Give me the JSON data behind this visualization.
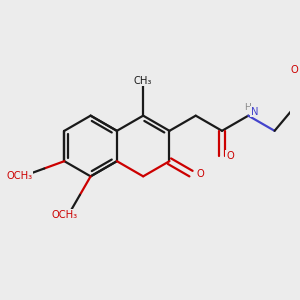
{
  "bg_color": "#ececec",
  "bond_color": "#1a1a1a",
  "oxygen_color": "#cc0000",
  "nitrogen_color": "#4444cc",
  "line_width": 1.6,
  "figsize": [
    3.0,
    3.0
  ],
  "dpi": 100,
  "xlim": [
    -1.6,
    2.0
  ],
  "ylim": [
    -1.4,
    1.4
  ]
}
